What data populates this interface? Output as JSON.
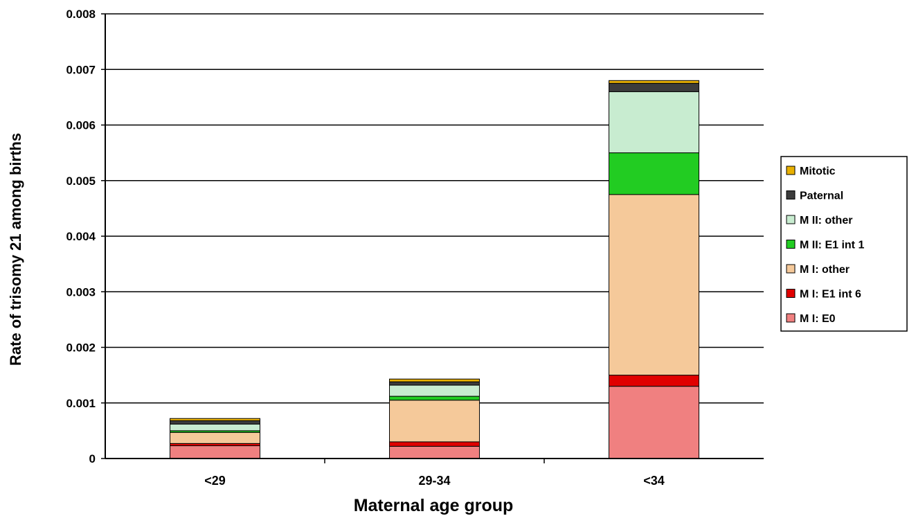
{
  "chart_data": {
    "type": "bar",
    "stacked": true,
    "title": "",
    "xlabel": "Maternal age group",
    "ylabel": "Rate of trisomy 21 among births",
    "categories": [
      "<29",
      "29-34",
      "<34"
    ],
    "ylim": [
      0,
      0.008
    ],
    "yticks": [
      "0",
      "0.001",
      "0.002",
      "0.003",
      "0.004",
      "0.005",
      "0.006",
      "0.007",
      "0.008"
    ],
    "grid": true,
    "legend_position": "right",
    "series": [
      {
        "name": "M I: E0",
        "color": "#f08080",
        "values": [
          0.00023,
          0.00022,
          0.0013
        ]
      },
      {
        "name": "M I: E1 int 6",
        "color": "#e00000",
        "values": [
          4e-05,
          8e-05,
          0.0002
        ]
      },
      {
        "name": "M I: other",
        "color": "#f5c99a",
        "values": [
          0.0002,
          0.00075,
          0.00325
        ]
      },
      {
        "name": "M II: E1 int 1",
        "color": "#22cc22",
        "values": [
          3e-05,
          7e-05,
          0.00075
        ]
      },
      {
        "name": "M II: other",
        "color": "#c8ecd0",
        "values": [
          0.00012,
          0.0002,
          0.0011
        ]
      },
      {
        "name": "Paternal",
        "color": "#3c3c3c",
        "values": [
          6e-05,
          6e-05,
          0.00015
        ]
      },
      {
        "name": "Mitotic",
        "color": "#e8b000",
        "values": [
          4e-05,
          5e-05,
          5e-05
        ]
      }
    ]
  }
}
